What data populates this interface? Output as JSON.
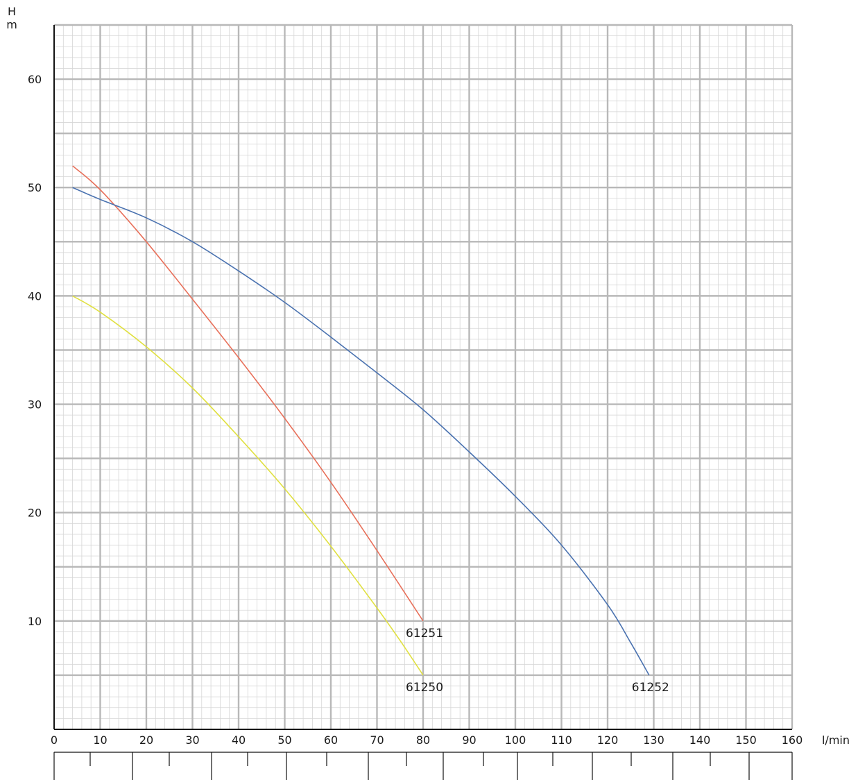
{
  "chart_data": {
    "type": "line",
    "title": "",
    "ylabel_lines": [
      "H",
      "m"
    ],
    "xlabel": "l/min",
    "xlim": [
      0,
      160
    ],
    "ylim": [
      0,
      65
    ],
    "x_ticks": [
      0,
      10,
      20,
      30,
      40,
      50,
      60,
      70,
      80,
      90,
      100,
      110,
      120,
      130,
      140,
      150,
      160
    ],
    "y_ticks": [
      10,
      20,
      30,
      40,
      50,
      60
    ],
    "grid": true,
    "legend": "none",
    "series": [
      {
        "name": "61250",
        "color": "#e0e040",
        "x": [
          4,
          10,
          20,
          30,
          40,
          50,
          60,
          70,
          75,
          80
        ],
        "y": [
          40,
          38.5,
          35.3,
          31.5,
          27,
          22.2,
          16.9,
          11.2,
          8.2,
          5
        ]
      },
      {
        "name": "61251",
        "color": "#e8705a",
        "x": [
          4,
          8,
          12,
          20,
          30,
          40,
          50,
          60,
          70,
          80
        ],
        "y": [
          52,
          50.6,
          48.9,
          45,
          39.7,
          34.3,
          28.7,
          22.8,
          16.5,
          10
        ]
      },
      {
        "name": "61252",
        "color": "#4a72b0",
        "x": [
          4,
          10,
          20,
          30,
          40,
          50,
          60,
          70,
          80,
          90,
          100,
          110,
          120,
          125,
          129
        ],
        "y": [
          50,
          48.9,
          47.2,
          45,
          42.3,
          39.4,
          36.2,
          32.9,
          29.5,
          25.6,
          21.5,
          17,
          11.5,
          8,
          5
        ]
      }
    ]
  }
}
